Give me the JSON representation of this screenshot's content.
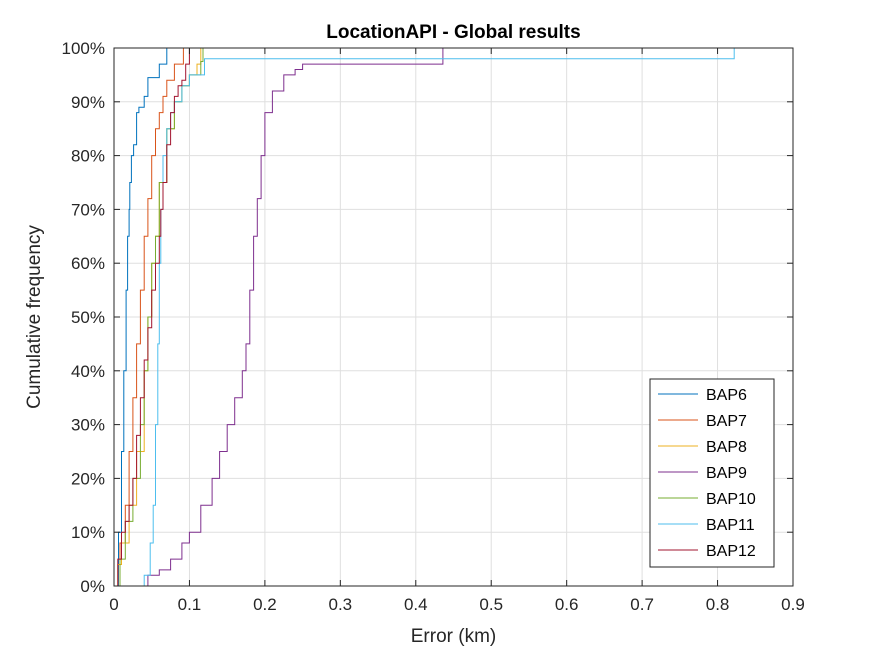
{
  "chart_data": {
    "type": "line",
    "title": "LocationAPI - Global results",
    "xlabel": "Error (km)",
    "ylabel": "Cumulative frequency",
    "xlim": [
      0,
      0.9
    ],
    "ylim": [
      0,
      100
    ],
    "x_ticks": [
      "0",
      "0.1",
      "0.2",
      "0.3",
      "0.4",
      "0.5",
      "0.6",
      "0.7",
      "0.8",
      "0.9"
    ],
    "y_ticks": [
      "0%",
      "10%",
      "20%",
      "30%",
      "40%",
      "50%",
      "60%",
      "70%",
      "80%",
      "90%",
      "100%"
    ],
    "grid": true,
    "legend_position": "bottom-right",
    "step": true,
    "series": [
      {
        "name": "BAP6",
        "color": "#0072BD",
        "x": [
          0.0,
          0.006,
          0.01,
          0.013,
          0.016,
          0.018,
          0.02,
          0.021,
          0.023,
          0.026,
          0.03,
          0.033,
          0.04,
          0.045,
          0.06,
          0.07
        ],
        "y": [
          0,
          10,
          25,
          40,
          55,
          65,
          70,
          75,
          80,
          82,
          88,
          89,
          91,
          94.5,
          97,
          100
        ]
      },
      {
        "name": "BAP7",
        "color": "#D95319",
        "x": [
          0.0,
          0.008,
          0.015,
          0.02,
          0.025,
          0.03,
          0.035,
          0.04,
          0.045,
          0.05,
          0.055,
          0.06,
          0.065,
          0.07,
          0.08,
          0.092
        ],
        "y": [
          0,
          8,
          15,
          25,
          35,
          45,
          55,
          65,
          72,
          80,
          85,
          88,
          91,
          94,
          97,
          100
        ]
      },
      {
        "name": "BAP8",
        "color": "#EDB120",
        "x": [
          0.0,
          0.005,
          0.01,
          0.02,
          0.03,
          0.04,
          0.045,
          0.05,
          0.055,
          0.06,
          0.07,
          0.08,
          0.09,
          0.1,
          0.11,
          0.115
        ],
        "y": [
          0,
          4,
          8,
          15,
          25,
          40,
          50,
          60,
          65,
          75,
          85,
          90,
          93,
          95,
          97,
          100
        ]
      },
      {
        "name": "BAP9",
        "color": "#7E2F8E",
        "x": [
          0.038,
          0.045,
          0.06,
          0.075,
          0.09,
          0.1,
          0.115,
          0.13,
          0.14,
          0.15,
          0.16,
          0.17,
          0.175,
          0.18,
          0.185,
          0.19,
          0.195,
          0.2,
          0.21,
          0.225,
          0.24,
          0.25,
          0.434,
          0.436
        ],
        "y": [
          0,
          2,
          3,
          5,
          8,
          10,
          15,
          20,
          25,
          30,
          35,
          40,
          45,
          55,
          65,
          72,
          80,
          88,
          92,
          95,
          96,
          97,
          97,
          100
        ]
      },
      {
        "name": "BAP10",
        "color": "#77AC30",
        "x": [
          0.0,
          0.008,
          0.015,
          0.025,
          0.035,
          0.04,
          0.045,
          0.05,
          0.055,
          0.06,
          0.07,
          0.08,
          0.09,
          0.1,
          0.115,
          0.118
        ],
        "y": [
          0,
          5,
          12,
          20,
          30,
          40,
          50,
          60,
          65,
          75,
          85,
          90,
          93,
          95,
          97.5,
          100
        ]
      },
      {
        "name": "BAP11",
        "color": "#4DBEEE",
        "x": [
          0.035,
          0.04,
          0.048,
          0.052,
          0.055,
          0.058,
          0.06,
          0.062,
          0.065,
          0.07,
          0.075,
          0.08,
          0.09,
          0.1,
          0.12,
          0.82,
          0.822
        ],
        "y": [
          0,
          2,
          8,
          15,
          30,
          45,
          60,
          70,
          80,
          85,
          88,
          90,
          93,
          95,
          98,
          98,
          100
        ]
      },
      {
        "name": "BAP12",
        "color": "#A2142F",
        "x": [
          0.0,
          0.005,
          0.01,
          0.015,
          0.02,
          0.025,
          0.03,
          0.035,
          0.04,
          0.045,
          0.05,
          0.055,
          0.06,
          0.062,
          0.065,
          0.07,
          0.075,
          0.08,
          0.085,
          0.09,
          0.095,
          0.1
        ],
        "y": [
          0,
          5,
          10,
          12,
          15,
          20,
          28,
          35,
          42,
          48,
          55,
          60,
          65,
          70,
          75,
          82,
          88,
          91,
          93,
          94,
          97,
          100
        ]
      }
    ]
  }
}
